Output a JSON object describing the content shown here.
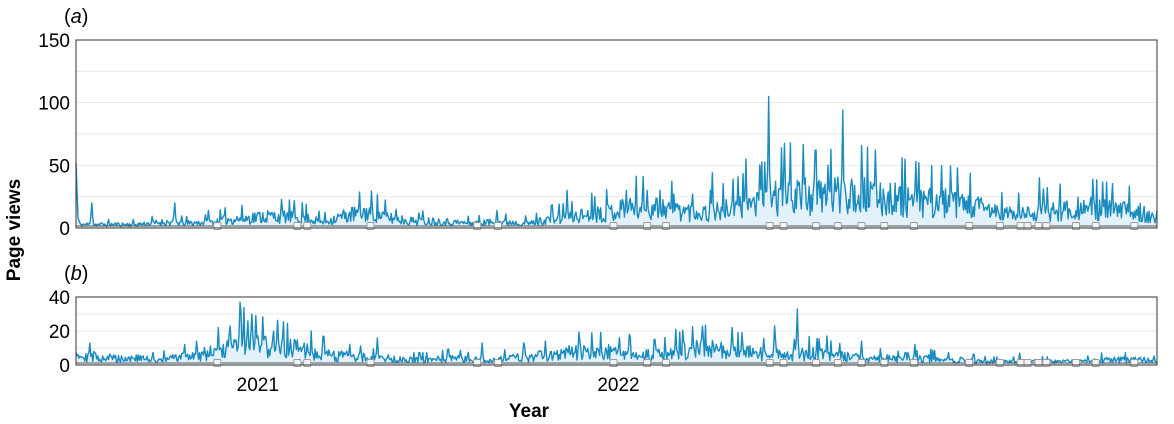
{
  "figure": {
    "xlabel": "Year",
    "ylabel": "Page views",
    "colors": {
      "line": "#1a8bbf",
      "fill": "#e3f2fa",
      "grid": "#e8e8e8",
      "frame": "#333333",
      "marker": "#9a9a9a"
    }
  },
  "chart_data": [
    {
      "type": "area",
      "panel_label": "(a)",
      "ylim": [
        0,
        150
      ],
      "yticks": [
        0,
        50,
        100,
        150
      ],
      "grid": true,
      "x_start": "2020-07-01",
      "x_end": "2023-06-30",
      "anchors": [
        [
          0,
          55
        ],
        [
          2,
          8
        ],
        [
          4,
          3
        ],
        [
          30,
          3
        ],
        [
          60,
          3
        ],
        [
          90,
          5
        ],
        [
          110,
          4
        ],
        [
          140,
          5
        ],
        [
          150,
          7
        ],
        [
          170,
          8
        ],
        [
          190,
          10
        ],
        [
          210,
          10
        ],
        [
          230,
          9
        ],
        [
          250,
          5
        ],
        [
          270,
          10
        ],
        [
          290,
          13
        ],
        [
          300,
          13
        ],
        [
          320,
          8
        ],
        [
          340,
          6
        ],
        [
          360,
          6
        ],
        [
          380,
          5
        ],
        [
          400,
          4
        ],
        [
          420,
          5
        ],
        [
          440,
          5
        ],
        [
          460,
          4
        ],
        [
          480,
          8
        ],
        [
          500,
          9
        ],
        [
          520,
          12
        ],
        [
          540,
          14
        ],
        [
          560,
          18
        ],
        [
          580,
          18
        ],
        [
          600,
          17
        ],
        [
          620,
          14
        ],
        [
          640,
          13
        ],
        [
          660,
          16
        ],
        [
          680,
          20
        ],
        [
          700,
          24
        ],
        [
          720,
          30
        ],
        [
          730,
          30
        ],
        [
          740,
          28
        ],
        [
          760,
          26
        ],
        [
          780,
          32
        ],
        [
          800,
          28
        ],
        [
          820,
          26
        ],
        [
          840,
          24
        ],
        [
          860,
          22
        ],
        [
          880,
          22
        ],
        [
          900,
          20
        ],
        [
          920,
          16
        ],
        [
          940,
          12
        ],
        [
          960,
          12
        ],
        [
          980,
          14
        ],
        [
          1000,
          16
        ],
        [
          1020,
          18
        ],
        [
          1040,
          16
        ],
        [
          1060,
          15
        ],
        [
          1080,
          14
        ],
        [
          1094,
          6
        ]
      ],
      "spikes": [
        [
          16,
          20
        ],
        [
          100,
          20
        ],
        [
          134,
          14
        ],
        [
          324,
          15
        ],
        [
          347,
          12
        ],
        [
          426,
          14
        ],
        [
          497,
          30
        ],
        [
          525,
          25
        ],
        [
          557,
          30
        ],
        [
          578,
          30
        ],
        [
          591,
          30
        ],
        [
          605,
          27
        ],
        [
          624,
          27
        ],
        [
          644,
          44
        ],
        [
          678,
          55
        ],
        [
          690,
          28
        ],
        [
          701,
          105
        ],
        [
          716,
          40
        ],
        [
          738,
          40
        ],
        [
          752,
          38
        ],
        [
          761,
          50
        ],
        [
          776,
          94
        ],
        [
          796,
          40
        ],
        [
          855,
          30
        ],
        [
          920,
          16
        ],
        [
          975,
          40
        ],
        [
          1020,
          22
        ]
      ],
      "markers": [
        143,
        224,
        234,
        298,
        406,
        427,
        544,
        578,
        597,
        702,
        716,
        749,
        771,
        795,
        818,
        848,
        904,
        935,
        956,
        963,
        974,
        982,
        1012,
        1032,
        1071
      ]
    },
    {
      "type": "area",
      "panel_label": "(b)",
      "ylim": [
        0,
        40
      ],
      "yticks": [
        0,
        20,
        40
      ],
      "grid": true,
      "x_start": "2020-07-01",
      "x_end": "2023-06-30",
      "xticks": [
        {
          "label": "2021",
          "day": 184
        },
        {
          "label": "2022",
          "day": 549
        }
      ],
      "anchors": [
        [
          0,
          12
        ],
        [
          3,
          6
        ],
        [
          20,
          5
        ],
        [
          40,
          4
        ],
        [
          60,
          4
        ],
        [
          80,
          3
        ],
        [
          100,
          4
        ],
        [
          120,
          6
        ],
        [
          140,
          8
        ],
        [
          160,
          10
        ],
        [
          170,
          14
        ],
        [
          180,
          12
        ],
        [
          200,
          11
        ],
        [
          220,
          10
        ],
        [
          240,
          8
        ],
        [
          260,
          6
        ],
        [
          280,
          5
        ],
        [
          300,
          4
        ],
        [
          320,
          4
        ],
        [
          340,
          3
        ],
        [
          360,
          3
        ],
        [
          380,
          4
        ],
        [
          400,
          3
        ],
        [
          420,
          3
        ],
        [
          440,
          4
        ],
        [
          460,
          5
        ],
        [
          480,
          6
        ],
        [
          500,
          8
        ],
        [
          520,
          8
        ],
        [
          540,
          8
        ],
        [
          560,
          7
        ],
        [
          580,
          6
        ],
        [
          600,
          7
        ],
        [
          620,
          9
        ],
        [
          640,
          10
        ],
        [
          660,
          8
        ],
        [
          680,
          8
        ],
        [
          700,
          6
        ],
        [
          720,
          6
        ],
        [
          740,
          7
        ],
        [
          760,
          6
        ],
        [
          780,
          5
        ],
        [
          800,
          4
        ],
        [
          820,
          4
        ],
        [
          840,
          3
        ],
        [
          860,
          4
        ],
        [
          880,
          3
        ],
        [
          900,
          3
        ],
        [
          920,
          2
        ],
        [
          940,
          2
        ],
        [
          960,
          2
        ],
        [
          980,
          2
        ],
        [
          1000,
          2
        ],
        [
          1020,
          2
        ],
        [
          1040,
          3
        ],
        [
          1060,
          3
        ],
        [
          1080,
          3
        ],
        [
          1094,
          2
        ]
      ],
      "spikes": [
        [
          110,
          12
        ],
        [
          122,
          14
        ],
        [
          144,
          22
        ],
        [
          155,
          18
        ],
        [
          166,
          37
        ],
        [
          174,
          26
        ],
        [
          182,
          29
        ],
        [
          200,
          20
        ],
        [
          250,
          17
        ],
        [
          305,
          16
        ],
        [
          411,
          13
        ],
        [
          453,
          13
        ],
        [
          510,
          14
        ],
        [
          550,
          16
        ],
        [
          560,
          18
        ],
        [
          607,
          21
        ],
        [
          615,
          14
        ],
        [
          633,
          15
        ],
        [
          664,
          22
        ],
        [
          707,
          23
        ],
        [
          730,
          33
        ],
        [
          760,
          17
        ],
        [
          795,
          14
        ],
        [
          849,
          12
        ],
        [
          920,
          5
        ],
        [
          955,
          7
        ]
      ],
      "markers": [
        143,
        224,
        234,
        298,
        406,
        427,
        544,
        578,
        597,
        702,
        716,
        749,
        771,
        795,
        818,
        848,
        904,
        935,
        956,
        963,
        974,
        982,
        1012,
        1032,
        1071
      ]
    }
  ]
}
